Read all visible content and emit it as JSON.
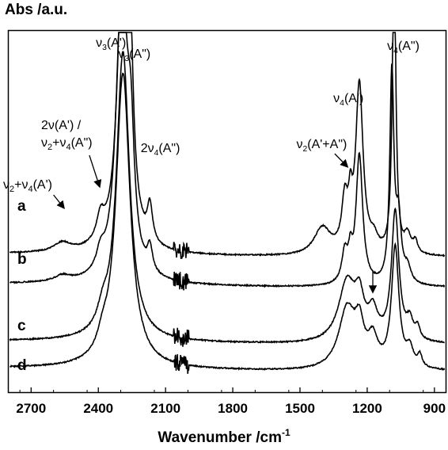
{
  "chart_data": {
    "type": "line",
    "ylabel": "Abs /a.u.",
    "xlabel_text": "Wavenumber /cm",
    "xlabel_sup": "-1",
    "x_reversed": true,
    "xlim": [
      2800,
      850
    ],
    "xticks": [
      2700,
      2400,
      2100,
      1800,
      1500,
      1200,
      900
    ],
    "xtick_labels": [
      "2700",
      "2400",
      "2100",
      "1800",
      "1500",
      "1200",
      "900"
    ],
    "y_ticks_shown": false,
    "series": [
      {
        "name": "a",
        "baseline": 0.44,
        "peaks": [
          [
            2290,
            1.0,
            28
          ],
          [
            2260,
            0.55,
            16
          ],
          [
            2170,
            0.12,
            14
          ],
          [
            2390,
            0.08,
            22
          ],
          [
            2560,
            0.03,
            45
          ],
          [
            1400,
            0.09,
            45
          ],
          [
            1300,
            0.16,
            16
          ],
          [
            1275,
            0.12,
            10
          ],
          [
            1235,
            0.56,
            20
          ],
          [
            1170,
            0.04,
            20
          ],
          [
            1080,
            1.05,
            9
          ],
          [
            1020,
            0.06,
            18
          ],
          [
            985,
            0.04,
            12
          ]
        ]
      },
      {
        "name": "b",
        "baseline": 0.34,
        "peaks": [
          [
            2295,
            1.0,
            30
          ],
          [
            2255,
            0.34,
            18
          ],
          [
            2170,
            0.08,
            14
          ],
          [
            2390,
            0.06,
            22
          ],
          [
            2560,
            0.02,
            45
          ],
          [
            1300,
            0.1,
            16
          ],
          [
            1275,
            0.08,
            10
          ],
          [
            1235,
            0.43,
            18
          ],
          [
            1090,
            0.7,
            11
          ],
          [
            1060,
            0.2,
            14
          ],
          [
            1020,
            0.05,
            18
          ]
        ]
      },
      {
        "name": "c",
        "baseline": 0.15,
        "peaks": [
          [
            2290,
            0.96,
            35
          ],
          [
            2380,
            0.06,
            28
          ],
          [
            1290,
            0.2,
            45
          ],
          [
            1235,
            0.12,
            24
          ],
          [
            1175,
            0.09,
            26
          ],
          [
            1075,
            0.43,
            20
          ],
          [
            1010,
            0.06,
            18
          ],
          [
            975,
            0.04,
            12
          ]
        ]
      },
      {
        "name": "d",
        "baseline": 0.06,
        "peaks": [
          [
            2290,
            0.98,
            38
          ],
          [
            2380,
            0.05,
            28
          ],
          [
            1290,
            0.2,
            45
          ],
          [
            1235,
            0.12,
            24
          ],
          [
            1175,
            0.09,
            26
          ],
          [
            1075,
            0.4,
            20
          ],
          [
            1010,
            0.06,
            18
          ],
          [
            965,
            0.04,
            12
          ]
        ]
      }
    ],
    "annotations": {
      "peak_labels": [
        {
          "id": "nu3A1",
          "base": "ν",
          "sub": "3",
          "tail": "(A')",
          "x": 2305
        },
        {
          "id": "nu3A2",
          "base": "ν",
          "sub": "3",
          "tail": "(A\")",
          "x": 2205
        },
        {
          "id": "nu4A2b",
          "base": "ν",
          "sub": "4",
          "tail": "(A\")",
          "x": 1005
        },
        {
          "id": "nu4A1",
          "base": "ν",
          "sub": "4",
          "tail": "(A')",
          "x": 1245
        },
        {
          "id": "nu2sum",
          "base": "ν",
          "sub": "2",
          "tail": "(A'+A\")",
          "x": 1410
        },
        {
          "id": "two_nu4",
          "base": "2ν",
          "sub": "4",
          "tail": "(A\")",
          "x": 2105
        }
      ],
      "two_nu_line1": "2ν(A') /",
      "two_nu_line2": {
        "a": "ν",
        "s1": "2",
        "b": "+ν",
        "s2": "4",
        "c": "(A\")"
      },
      "nu2nu4": {
        "a": "ν",
        "s1": "2",
        "b": "+ν",
        "s2": "4",
        "c": "(A')"
      }
    }
  }
}
